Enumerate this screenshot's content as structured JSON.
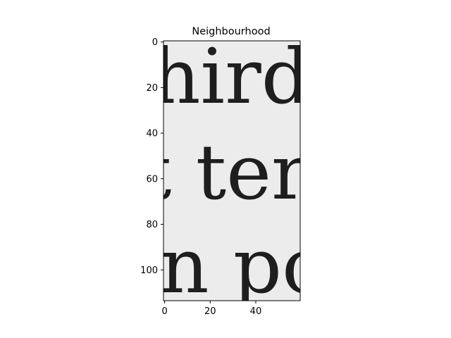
{
  "chart_data": {
    "type": "image",
    "title": "Neighbourhood",
    "xlabel": "",
    "ylabel": "",
    "xlim": [
      -0.5,
      59.5
    ],
    "ylim": [
      113.5,
      -0.5
    ],
    "y_inverted": true,
    "grid": false,
    "x_ticks": [
      0,
      20,
      40
    ],
    "y_ticks": [
      0,
      20,
      40,
      60,
      80,
      100
    ],
    "image": {
      "colormap": "gray",
      "background": "#ececec",
      "ink": "#1e1e1e",
      "text_rows": [
        "hird-",
        "t ter",
        "n po"
      ]
    }
  }
}
